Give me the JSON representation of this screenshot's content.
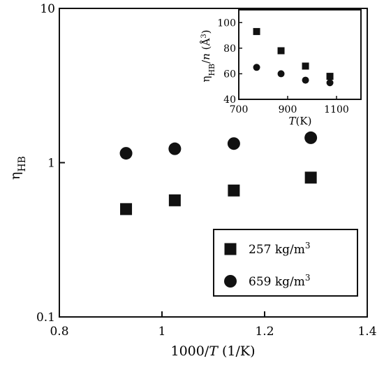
{
  "chart_data": [
    {
      "type": "scatter",
      "title": "",
      "xlabel": "1000/T (1/K)",
      "ylabel": "ηHB",
      "xlim": [
        0.8,
        1.4
      ],
      "ylim": [
        0.1,
        10
      ],
      "yscale": "log",
      "xticks": [
        "0.8",
        "1",
        "1.2",
        "1.4"
      ],
      "yticks": [
        "0.1",
        "1",
        "10"
      ],
      "grid": false,
      "legend": "bottom-right",
      "series": [
        {
          "name": "257 kg/m³",
          "marker": "square",
          "x": [
            0.93,
            1.025,
            1.14,
            1.29
          ],
          "y": [
            0.5,
            0.57,
            0.66,
            0.8
          ]
        },
        {
          "name": "659 kg/m³",
          "marker": "circle",
          "x": [
            0.93,
            1.025,
            1.14,
            1.29
          ],
          "y": [
            1.15,
            1.23,
            1.33,
            1.45
          ]
        }
      ]
    },
    {
      "type": "scatter",
      "title": "",
      "xlabel": "T(K)",
      "ylabel": "ηHB/n (Å³)",
      "xlim": [
        700,
        1200
      ],
      "ylim": [
        40,
        110
      ],
      "xticks": [
        "700",
        "900",
        "1100"
      ],
      "yticks": [
        "40",
        "60",
        "80",
        "100"
      ],
      "grid": false,
      "legend": "none",
      "series": [
        {
          "marker": "square",
          "x": [
            773,
            873,
            973,
            1073
          ],
          "y": [
            93,
            78,
            66,
            58
          ]
        },
        {
          "marker": "circle",
          "x": [
            773,
            873,
            973,
            1073
          ],
          "y": [
            65,
            60,
            55,
            53
          ]
        }
      ]
    }
  ]
}
